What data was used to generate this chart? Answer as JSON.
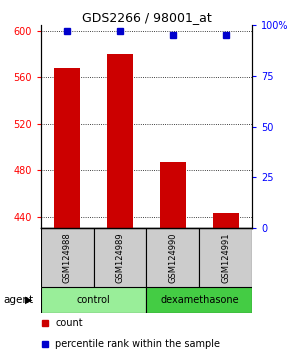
{
  "title": "GDS2266 / 98001_at",
  "samples": [
    "GSM124988",
    "GSM124989",
    "GSM124990",
    "GSM124991"
  ],
  "bar_values": [
    568,
    580,
    487,
    443
  ],
  "percentile_values": [
    97,
    97,
    95,
    95
  ],
  "bar_color": "#cc0000",
  "percentile_color": "#0000cc",
  "ylim_left": [
    430,
    605
  ],
  "ylim_right": [
    0,
    100
  ],
  "yticks_left": [
    440,
    480,
    520,
    560,
    600
  ],
  "yticks_right": [
    0,
    25,
    50,
    75,
    100
  ],
  "ytick_labels_right": [
    "0",
    "25",
    "50",
    "75",
    "100%"
  ],
  "groups": [
    {
      "label": "control",
      "indices": [
        0,
        1
      ],
      "color": "#99ee99"
    },
    {
      "label": "dexamethasone",
      "indices": [
        2,
        3
      ],
      "color": "#44cc44"
    }
  ],
  "agent_label": "agent",
  "legend_count_label": "count",
  "legend_percentile_label": "percentile rank within the sample",
  "bar_width": 0.5,
  "sample_box_color": "#cccccc"
}
